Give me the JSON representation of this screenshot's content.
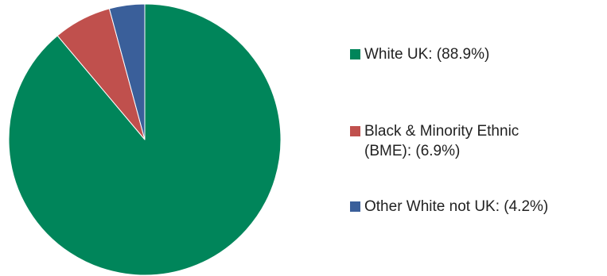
{
  "chart_data": {
    "type": "pie",
    "title": "",
    "start_angle_deg": 0,
    "direction": "clockwise",
    "slices": [
      {
        "label_lines": [
          "White UK: (88.9%)"
        ],
        "value": 88.9,
        "color": "#00855a"
      },
      {
        "label_lines": [
          "Black & Minority Ethnic",
          "(BME): (6.9%)"
        ],
        "value": 6.9,
        "color": "#c0504d"
      },
      {
        "label_lines": [
          "Other White not UK: (4.2%)"
        ],
        "value": 4.2,
        "color": "#3a5f9a"
      }
    ],
    "legend_position": "right"
  }
}
